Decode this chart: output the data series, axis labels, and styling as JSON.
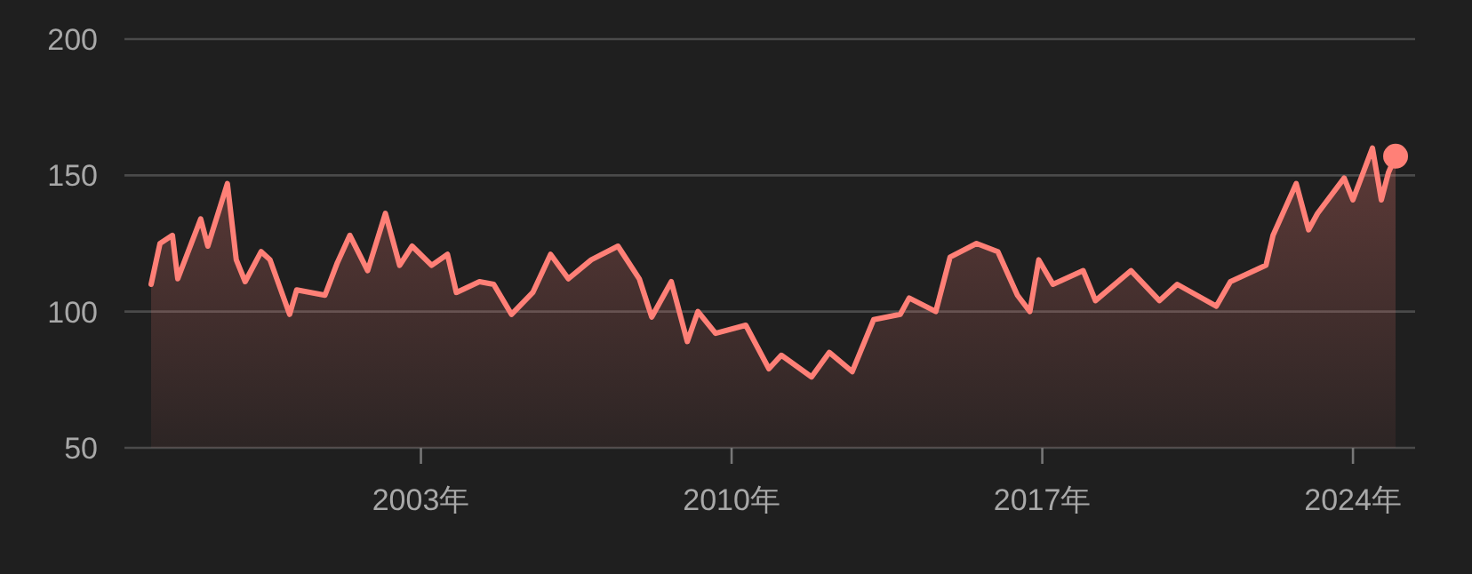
{
  "chart_data": {
    "type": "area",
    "xlim": [
      1996.32,
      2025.4
    ],
    "ylim": [
      50,
      200
    ],
    "xticks": [
      {
        "value": 2003,
        "label": "2003年"
      },
      {
        "value": 2010,
        "label": "2010年"
      },
      {
        "value": 2017,
        "label": "2017年"
      },
      {
        "value": 2024,
        "label": "2024年"
      }
    ],
    "yticks": [
      50,
      100,
      150,
      200
    ],
    "grid": "y",
    "series": [
      {
        "color": "#ff8077",
        "x": [
          1996.92,
          1997.12,
          1997.4,
          1997.52,
          1998.04,
          1998.2,
          1998.64,
          1998.84,
          1999.04,
          1999.4,
          1999.6,
          2000.04,
          2000.2,
          2000.84,
          2001.12,
          2001.4,
          2001.8,
          2002.2,
          2002.52,
          2002.8,
          2003.24,
          2003.6,
          2003.8,
          2004.32,
          2004.64,
          2005.04,
          2005.52,
          2005.92,
          2006.32,
          2006.84,
          2007.44,
          2007.92,
          2008.2,
          2008.64,
          2009.0,
          2009.24,
          2009.64,
          2010.32,
          2010.84,
          2011.12,
          2011.8,
          2012.2,
          2012.72,
          2013.2,
          2013.8,
          2014.0,
          2014.6,
          2014.92,
          2015.52,
          2016.0,
          2016.44,
          2016.72,
          2016.92,
          2017.24,
          2017.92,
          2018.2,
          2019.0,
          2019.64,
          2020.04,
          2020.92,
          2021.24,
          2022.04,
          2022.2,
          2022.72,
          2023.0,
          2023.2,
          2023.8,
          2024.0,
          2024.44,
          2024.64,
          2024.8,
          2024.96
        ],
        "values": [
          110,
          125,
          128,
          112,
          134,
          124,
          147,
          119,
          111,
          122,
          119,
          99,
          108,
          106,
          118,
          128,
          115,
          136,
          117,
          124,
          117,
          121,
          107,
          111,
          110,
          99,
          107,
          121,
          112,
          119,
          124,
          112,
          98,
          111,
          89,
          100,
          92,
          95,
          79,
          84,
          76,
          85,
          78,
          97,
          99,
          105,
          100,
          120,
          125,
          122,
          106,
          100,
          119,
          110,
          115,
          104,
          115,
          104,
          110,
          102,
          111,
          117,
          128,
          147,
          130,
          136,
          149,
          141,
          160,
          141,
          151,
          157
        ]
      },
      {
        "type": "scatter",
        "color": "#ff8077",
        "x": [
          2024.96
        ],
        "values": [
          157
        ]
      }
    ]
  }
}
